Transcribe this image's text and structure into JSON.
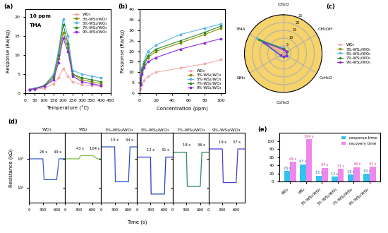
{
  "chart_data": [
    {
      "type": "line",
      "label": "(a)",
      "x_label": "Temperature (°C)",
      "y_label": "Response (Ra/Rg)",
      "annotations": [
        "10 ppm",
        "TMA"
      ],
      "legend": "upper right",
      "marker": "o",
      "x": [
        25,
        50,
        100,
        150,
        175,
        200,
        225,
        250,
        300,
        350,
        400
      ],
      "xlim": [
        0,
        450
      ],
      "xticks": [
        0,
        50,
        100,
        150,
        200,
        250,
        300,
        350,
        400,
        450
      ],
      "ylim": [
        0,
        22
      ],
      "yticks": [
        0,
        5,
        10,
        15,
        20
      ],
      "series": [
        {
          "name": "WO₃",
          "color": "#f4a9a8",
          "values": [
            1,
            1,
            1.3,
            2.5,
            4,
            6.5,
            4.5,
            3,
            2.2,
            2,
            1.8
          ]
        },
        {
          "name": "3%-WS₂/WO₃",
          "color": "#8b8b00",
          "values": [
            1,
            1.2,
            1.8,
            4,
            9,
            16,
            12,
            5,
            3.5,
            3,
            2.5
          ]
        },
        {
          "name": "5%-WS₂/WO₃",
          "color": "#56b4e9",
          "values": [
            1,
            1.3,
            2,
            5,
            11,
            19.5,
            15,
            6,
            5,
            4.5,
            4
          ]
        },
        {
          "name": "7%-WS₂/WO₃",
          "color": "#2e8b2e",
          "values": [
            1,
            1.2,
            2,
            4.5,
            10,
            18,
            13,
            5,
            4,
            3.5,
            3
          ]
        },
        {
          "name": "9%-WS₂/WO₃",
          "color": "#8a2be2",
          "values": [
            1,
            1.1,
            1.8,
            3.5,
            8,
            14.5,
            11,
            4.5,
            3,
            2.5,
            2
          ]
        }
      ]
    },
    {
      "type": "line",
      "label": "(b)",
      "x_label": "Concentration (ppm)",
      "y_label": "Response (Ra/Rg)",
      "legend": "lower right",
      "marker": "o",
      "x": [
        1,
        3,
        5,
        10,
        20,
        50,
        80,
        100
      ],
      "xlim": [
        0,
        105
      ],
      "xticks": [
        0,
        20,
        40,
        60,
        80,
        100
      ],
      "ylim": [
        0,
        40
      ],
      "yticks": [
        0,
        5,
        10,
        15,
        20,
        25,
        30,
        35,
        40
      ],
      "series": [
        {
          "name": "WO₃",
          "color": "#f4a9a8",
          "values": [
            2,
            4,
            6,
            8,
            10,
            12,
            14,
            16
          ]
        },
        {
          "name": "3%-WS₂/WO₃",
          "color": "#8b8b00",
          "values": [
            5,
            10,
            13,
            17,
            20,
            24,
            28,
            31
          ]
        },
        {
          "name": "5%-WS₂/WO₃",
          "color": "#56b4e9",
          "values": [
            6,
            12,
            15,
            20,
            23,
            28,
            31,
            33
          ]
        },
        {
          "name": "7%-WS₂/WO₃",
          "color": "#2e8b2e",
          "values": [
            5,
            11,
            14,
            18,
            21,
            25,
            29,
            32
          ]
        },
        {
          "name": "9%-WS₂/WO₃",
          "color": "#8a2be2",
          "values": [
            4,
            9,
            12,
            15,
            17,
            21,
            24,
            26
          ]
        }
      ]
    },
    {
      "type": "radar",
      "label": "(c)",
      "legend": "center left",
      "color": "#f6d36b",
      "categories": [
        "CH₂O",
        "CH₃OH",
        "C₂H₆O",
        "C₃H₆O",
        "NH₃",
        "TMA"
      ],
      "ylim": [
        0,
        25
      ],
      "yticks": [
        0,
        5,
        10,
        15,
        20,
        25
      ],
      "series": [
        {
          "name": "WO₃",
          "color": "#f4a9a8",
          "values": [
            2,
            2,
            2,
            1.5,
            1.5,
            6.5
          ]
        },
        {
          "name": "3%-WS₂/WO₃",
          "color": "#8b8b00",
          "values": [
            3,
            3,
            3,
            2,
            2,
            16
          ]
        },
        {
          "name": "5%-WS₂/WO₃",
          "color": "#56b4e9",
          "values": [
            3.5,
            3,
            3,
            2.5,
            2.5,
            19.5
          ]
        },
        {
          "name": "7%-WS₂/WO₃",
          "color": "#2e8b2e",
          "values": [
            3,
            3,
            2.5,
            2,
            2,
            18
          ]
        },
        {
          "name": "9%-WS₂/WO₃",
          "color": "#8a2be2",
          "values": [
            2.5,
            2.5,
            2.5,
            2,
            2,
            14.5
          ]
        }
      ]
    },
    {
      "type": "line",
      "label": "(d)",
      "x_label": "Time (s)",
      "y_label": "Resistance (kΩ)",
      "log": "y",
      "xlim": [
        0,
        780
      ],
      "xticks": [
        0,
        300,
        600
      ],
      "ylim": [
        30,
        8000
      ],
      "yticks": [
        {
          "value": 100,
          "label": "10²"
        },
        {
          "value": 1000,
          "label": "10³"
        }
      ],
      "series": [
        {
          "name": "WO₃",
          "color": "#3a5fcd",
          "x": [
            0,
            300,
            326,
            600,
            649,
            780
          ],
          "values": [
            1000,
            1000,
            190,
            190,
            1000,
            1000
          ],
          "annotations": [
            "26 s",
            "49 s"
          ]
        },
        {
          "name": "WS₂",
          "color": "#7fbf3f",
          "x": [
            0,
            300,
            343,
            600,
            704,
            780
          ],
          "values": [
            1000,
            1000,
            1300,
            1300,
            1000,
            1000
          ],
          "annotations": [
            "43 s",
            "104 s"
          ]
        },
        {
          "name": "3%-WS₂/WO₃",
          "color": "#2b4fd0",
          "x": [
            0,
            300,
            315,
            600,
            634,
            780
          ],
          "values": [
            2600,
            2600,
            160,
            160,
            2600,
            2600
          ],
          "annotations": [
            "15 s",
            "34 s"
          ]
        },
        {
          "name": "5%-WS₂/WO₃",
          "color": "#1f3fbf",
          "x": [
            0,
            300,
            312,
            600,
            631,
            780
          ],
          "values": [
            1150,
            1150,
            60,
            60,
            1150,
            1150
          ],
          "annotations": [
            "12 s",
            "31 s"
          ]
        },
        {
          "name": "7%-WS₂/WO₃",
          "color": "#2e8b57",
          "x": [
            0,
            300,
            318,
            600,
            636,
            780
          ],
          "values": [
            1700,
            1700,
            110,
            110,
            1700,
            1700
          ],
          "annotations": [
            "18 s",
            "36 s"
          ]
        },
        {
          "name": "9%-WS₂/WO₃",
          "color": "#4b3fd0",
          "x": [
            0,
            300,
            319,
            600,
            637,
            780
          ],
          "values": [
            2200,
            2200,
            150,
            150,
            2200,
            2200
          ],
          "annotations": [
            "19 s",
            "37 s"
          ]
        }
      ]
    },
    {
      "type": "bar",
      "label": "(e)",
      "legend": "upper right",
      "data_labels": true,
      "categories": [
        "WO₃",
        "WS₂",
        "3%-WS₂/WO₃",
        "5%-WS₂/WO₃",
        "7%-WS₂/WO₃",
        "9%-WS₂/WO₃"
      ],
      "ylim": [
        0,
        120
      ],
      "yticks": [
        0,
        20,
        40,
        60,
        80,
        100
      ],
      "series": [
        {
          "name": "response time",
          "color": "#33c4ee",
          "values": [
            26,
            43,
            15,
            12,
            18,
            19
          ],
          "value_labels": [
            "26 s",
            "43 s",
            "15 s",
            "12 s",
            "18 s",
            "19 s"
          ]
        },
        {
          "name": "recovery time",
          "color": "#ee88ee",
          "values": [
            49,
            104,
            34,
            31,
            36,
            37
          ],
          "value_labels": [
            "49 s",
            "104 s",
            "34 s",
            "31 s",
            "36 s",
            "37 s"
          ]
        }
      ]
    }
  ]
}
